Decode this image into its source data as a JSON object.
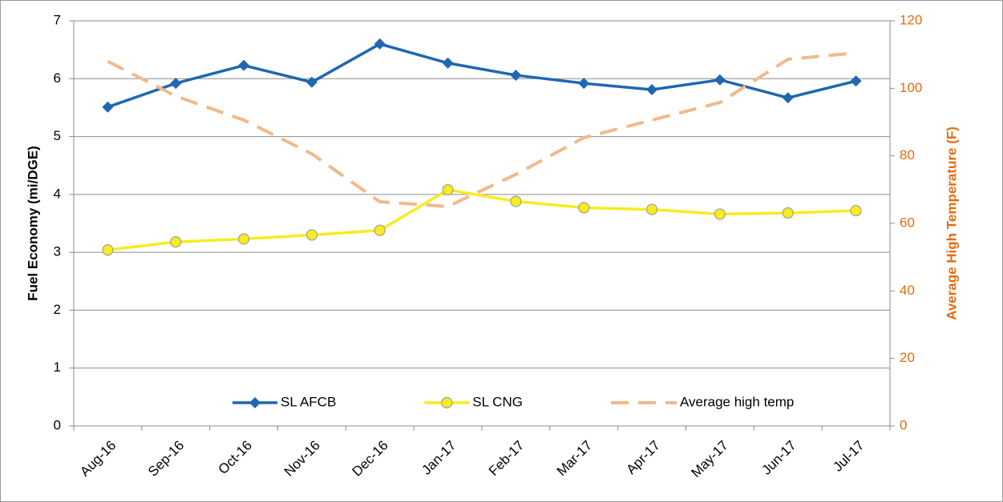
{
  "chart_data": {
    "type": "line",
    "categories": [
      "Aug-16",
      "Sep-16",
      "Oct-16",
      "Nov-16",
      "Dec-16",
      "Jan-17",
      "Feb-17",
      "Mar-17",
      "Apr-17",
      "May-17",
      "Jun-17",
      "Jul-17"
    ],
    "y_label": "Fuel Economy (mi/DGE)",
    "y2_label": "Average High Temperature (F)",
    "ylim": [
      0,
      7
    ],
    "yticks": [
      0,
      1,
      2,
      3,
      4,
      5,
      6,
      7
    ],
    "y2lim": [
      0,
      120
    ],
    "y2ticks": [
      0,
      20,
      40,
      60,
      80,
      100,
      120
    ],
    "grid": true,
    "legend": "bottom",
    "series": [
      {
        "name": "SL AFCB",
        "color": "#1f67b1",
        "marker": "diamond",
        "values": [
          5.51,
          5.92,
          6.23,
          5.94,
          6.6,
          6.27,
          6.06,
          5.92,
          5.81,
          5.98,
          5.67,
          5.96
        ]
      },
      {
        "name": "SL CNG",
        "color": "#f7ec1e",
        "marker": "circle",
        "values": [
          3.04,
          3.18,
          3.23,
          3.3,
          3.38,
          4.08,
          3.88,
          3.77,
          3.74,
          3.66,
          3.68,
          3.72
        ]
      },
      {
        "name": "Average high temp",
        "color": "#f2b98a",
        "dashed": true,
        "axis": "y2",
        "values": [
          108,
          97.7,
          90.6,
          80.6,
          66.4,
          65,
          74.5,
          85.4,
          90.6,
          95.8,
          108.6,
          110.5
        ]
      }
    ]
  }
}
